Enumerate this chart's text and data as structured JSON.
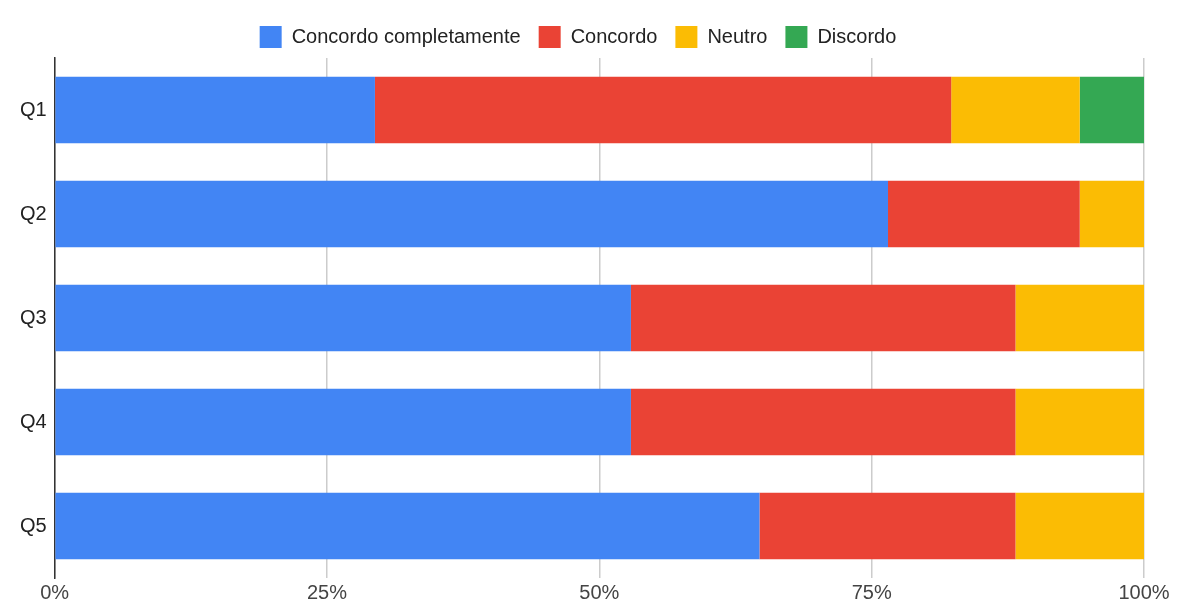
{
  "chart_data": {
    "type": "bar",
    "orientation": "horizontal",
    "stacked": true,
    "categories": [
      "Q1",
      "Q2",
      "Q3",
      "Q4",
      "Q5"
    ],
    "series": [
      {
        "name": "Concordo completamente",
        "color": "#4285f4",
        "values": [
          29.4,
          76.5,
          52.9,
          52.9,
          64.7
        ]
      },
      {
        "name": "Concordo",
        "color": "#ea4335",
        "values": [
          52.9,
          17.6,
          35.3,
          35.3,
          23.5
        ]
      },
      {
        "name": "Neutro",
        "color": "#fbbc04",
        "values": [
          11.8,
          5.9,
          11.8,
          11.8,
          11.8
        ]
      },
      {
        "name": "Discordo",
        "color": "#34a853",
        "values": [
          5.9,
          0,
          0,
          0,
          0
        ]
      }
    ],
    "xlim": [
      0,
      100
    ],
    "xticks": [
      {
        "value": 0,
        "label": "0%"
      },
      {
        "value": 25,
        "label": "25%"
      },
      {
        "value": 50,
        "label": "50%"
      },
      {
        "value": 75,
        "label": "75%"
      },
      {
        "value": 100,
        "label": "100%"
      }
    ],
    "grid": "x",
    "legend": "top"
  }
}
